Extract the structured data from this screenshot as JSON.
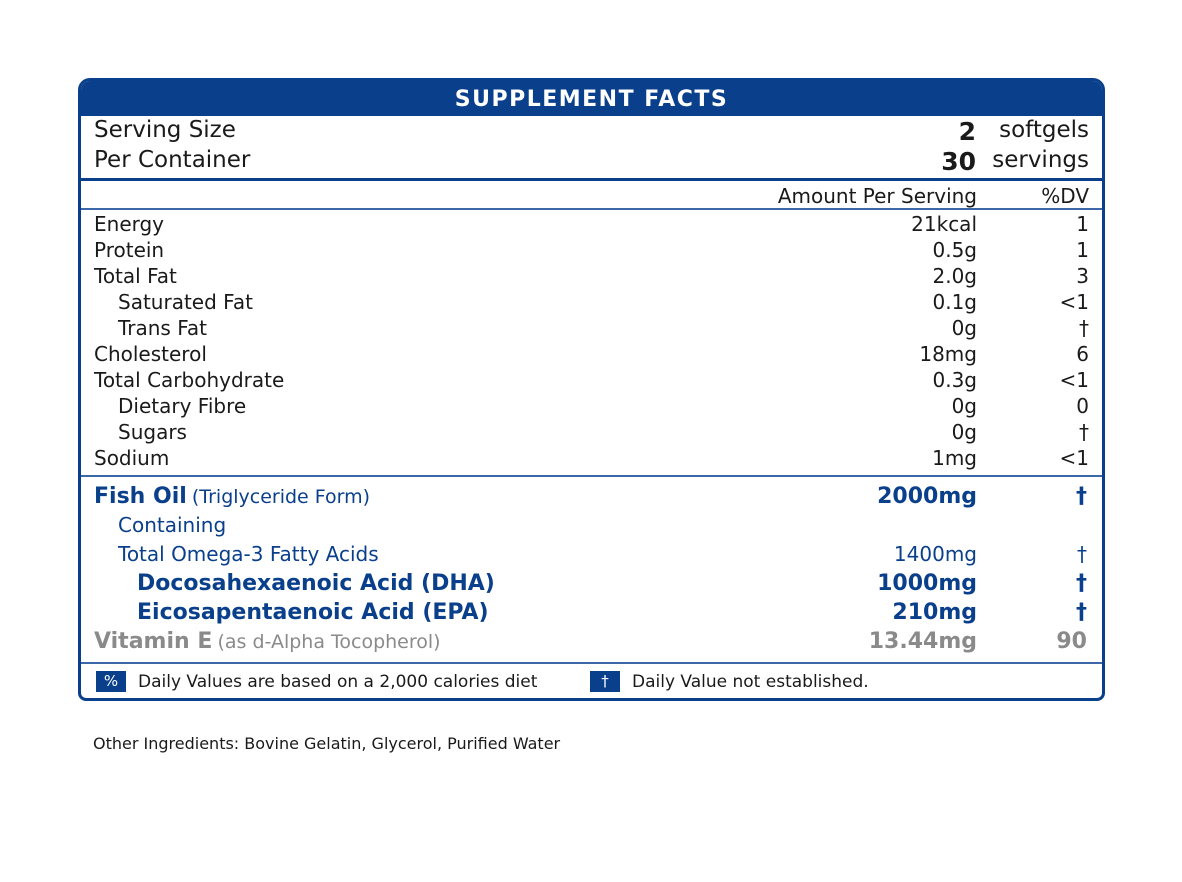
{
  "label": {
    "title": "SUPPLEMENT FACTS",
    "serving": [
      {
        "label": "Serving Size",
        "number": "2",
        "unit": "softgels"
      },
      {
        "label": "Per Container",
        "number": "30",
        "unit": "servings"
      }
    ],
    "columns": {
      "amount": "Amount Per Serving",
      "dv": "%DV"
    },
    "nutrients": [
      {
        "name": "Energy",
        "amount": "21kcal",
        "dv": "1",
        "indent": false
      },
      {
        "name": "Protein",
        "amount": "0.5g",
        "dv": "1",
        "indent": false
      },
      {
        "name": "Total Fat",
        "amount": "2.0g",
        "dv": "3",
        "indent": false
      },
      {
        "name": "Saturated Fat",
        "amount": "0.1g",
        "dv": "<1",
        "indent": true
      },
      {
        "name": "Trans Fat",
        "amount": "0g",
        "dv": "†",
        "indent": true
      },
      {
        "name": "Cholesterol",
        "amount": "18mg",
        "dv": "6",
        "indent": false
      },
      {
        "name": "Total Carbohydrate",
        "amount": "0.3g",
        "dv": "<1",
        "indent": false
      },
      {
        "name": "Dietary Fibre",
        "amount": "0g",
        "dv": "0",
        "indent": true
      },
      {
        "name": "Sugars",
        "amount": "0g",
        "dv": "†",
        "indent": true
      },
      {
        "name": "Sodium",
        "amount": "1mg",
        "dv": "<1",
        "indent": false
      }
    ],
    "supplements": {
      "fish_oil": {
        "name": "Fish Oil",
        "detail": "(Triglyceride Form)",
        "amount": "2000mg",
        "dv": "†"
      },
      "containing": {
        "name": "Containing"
      },
      "omega3": {
        "name": "Total Omega-3 Fatty Acids",
        "amount": "1400mg",
        "dv": "†"
      },
      "dha": {
        "name": "Docosahexaenoic Acid (DHA)",
        "amount": "1000mg",
        "dv": "†"
      },
      "epa": {
        "name": "Eicosapentaenoic Acid (EPA)",
        "amount": "210mg",
        "dv": "†"
      },
      "vitamin_e": {
        "name": "Vitamin E",
        "detail": "(as d-Alpha Tocopherol)",
        "amount": "13.44mg",
        "dv": "90"
      }
    },
    "footnotes": [
      {
        "symbol": "%",
        "text": "Daily Values are based on a 2,000 calories diet"
      },
      {
        "symbol": "†",
        "text": "Daily Value not established."
      }
    ],
    "colors": {
      "brand_blue": "#0a3f8c",
      "muted_grey": "#8a8a8a"
    }
  },
  "other_ingredients": "Other Ingredients: Bovine Gelatin, Glycerol, Purified Water"
}
